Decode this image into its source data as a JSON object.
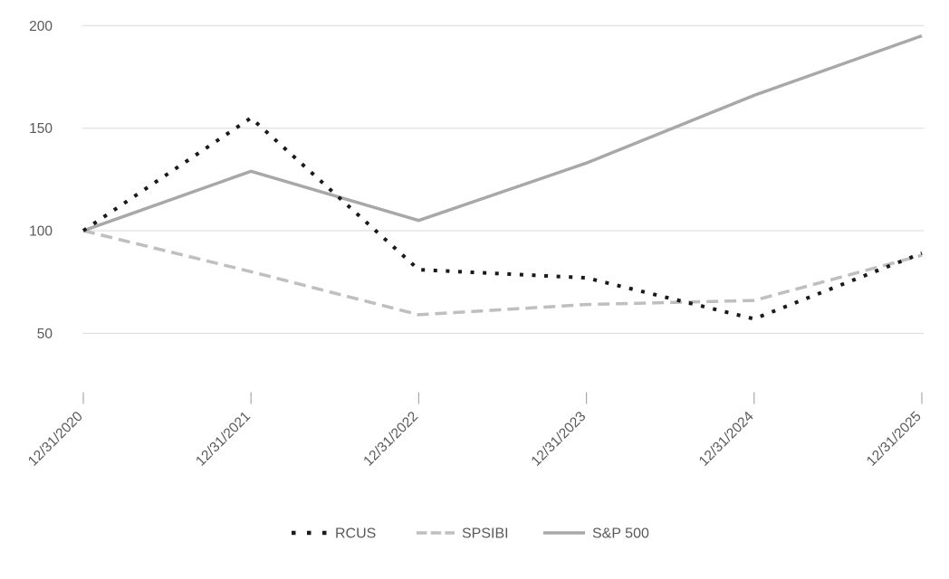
{
  "chart_data": {
    "type": "line",
    "title": "",
    "xlabel": "",
    "ylabel": "",
    "categories": [
      "12/31/2020",
      "12/31/2021",
      "12/31/2022",
      "12/31/2023",
      "12/31/2024",
      "12/31/2025"
    ],
    "series": [
      {
        "name": "RCUS",
        "values": [
          100,
          155,
          81,
          77,
          57,
          89
        ],
        "color": "#1a1a1a",
        "line_style": "dotted"
      },
      {
        "name": "SPSIBI",
        "values": [
          100,
          80,
          59,
          64,
          66,
          88
        ],
        "color": "#bfbfbf",
        "line_style": "dashed"
      },
      {
        "name": "S&P 500",
        "values": [
          100,
          129,
          105,
          133,
          166,
          195
        ],
        "color": "#a8a8a8",
        "line_style": "solid"
      }
    ],
    "y_axis": {
      "ticks": [
        200,
        150,
        100,
        50
      ],
      "tick_labels": [
        "200",
        "150",
        "100",
        "50"
      ],
      "ylim": [
        15,
        205
      ]
    },
    "x_axis": {
      "tick_marks": true
    },
    "grid": "horizontal",
    "legend_position": "bottom",
    "colors": {
      "background": "#ffffff",
      "text": "#595959",
      "gridline": "#d9d9d9",
      "tick": "#a9a9a9"
    }
  }
}
